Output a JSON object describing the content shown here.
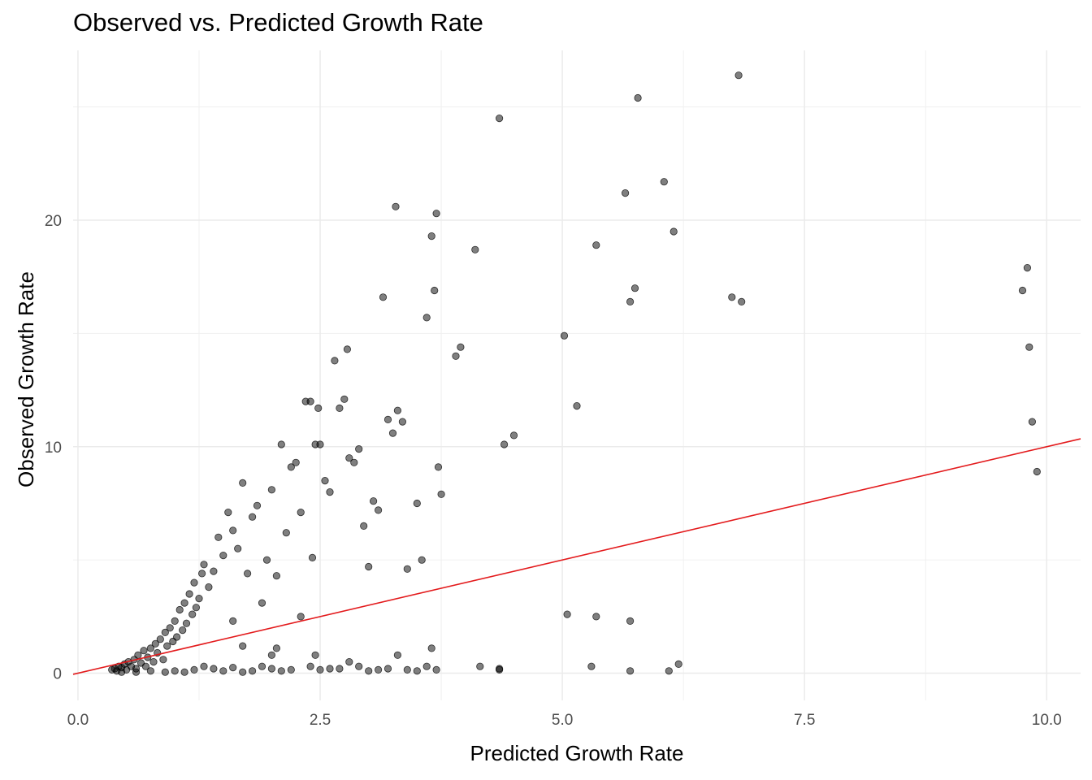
{
  "chart_data": {
    "type": "scatter",
    "title": "Observed vs. Predicted Growth Rate",
    "xlabel": "Predicted Growth Rate",
    "ylabel": "Observed Growth Rate",
    "xlim": [
      -0.05,
      10.35
    ],
    "ylim": [
      -1.2,
      27.5
    ],
    "xticks": [
      0.0,
      2.5,
      5.0,
      7.5,
      10.0
    ],
    "xtick_labels": [
      "0.0",
      "2.5",
      "5.0",
      "7.5",
      "10.0"
    ],
    "yticks": [
      0,
      10,
      20
    ],
    "ytick_labels": [
      "0",
      "10",
      "20"
    ],
    "grid": true,
    "point_color": "#000000",
    "point_opacity": 0.5,
    "reference_line": {
      "type": "identity",
      "slope": 1,
      "intercept": 0,
      "color": "#e31a1c"
    },
    "points": [
      [
        0.35,
        0.15
      ],
      [
        0.38,
        0.2
      ],
      [
        0.4,
        0.1
      ],
      [
        0.42,
        0.3
      ],
      [
        0.45,
        0.25
      ],
      [
        0.48,
        0.4
      ],
      [
        0.5,
        0.15
      ],
      [
        0.52,
        0.5
      ],
      [
        0.55,
        0.3
      ],
      [
        0.58,
        0.6
      ],
      [
        0.6,
        0.2
      ],
      [
        0.62,
        0.8
      ],
      [
        0.65,
        0.45
      ],
      [
        0.68,
        1.0
      ],
      [
        0.7,
        0.3
      ],
      [
        0.72,
        0.7
      ],
      [
        0.75,
        1.1
      ],
      [
        0.78,
        0.5
      ],
      [
        0.8,
        1.3
      ],
      [
        0.82,
        0.9
      ],
      [
        0.85,
        1.5
      ],
      [
        0.88,
        0.6
      ],
      [
        0.9,
        1.8
      ],
      [
        0.92,
        1.2
      ],
      [
        0.95,
        2.0
      ],
      [
        0.98,
        1.4
      ],
      [
        1.0,
        2.3
      ],
      [
        1.02,
        1.6
      ],
      [
        1.05,
        2.8
      ],
      [
        1.08,
        1.9
      ],
      [
        1.1,
        3.1
      ],
      [
        1.12,
        2.2
      ],
      [
        1.15,
        3.5
      ],
      [
        1.18,
        2.6
      ],
      [
        1.2,
        4.0
      ],
      [
        1.22,
        2.9
      ],
      [
        1.25,
        3.3
      ],
      [
        1.28,
        4.4
      ],
      [
        1.3,
        4.8
      ],
      [
        1.35,
        3.8
      ],
      [
        1.4,
        4.5
      ],
      [
        1.45,
        6.0
      ],
      [
        1.5,
        5.2
      ],
      [
        1.55,
        7.1
      ],
      [
        1.6,
        6.3
      ],
      [
        1.65,
        5.5
      ],
      [
        1.7,
        8.4
      ],
      [
        1.75,
        4.4
      ],
      [
        1.8,
        6.9
      ],
      [
        1.85,
        7.4
      ],
      [
        1.9,
        3.1
      ],
      [
        1.95,
        5.0
      ],
      [
        2.0,
        8.1
      ],
      [
        2.05,
        4.3
      ],
      [
        2.1,
        10.1
      ],
      [
        2.15,
        6.2
      ],
      [
        2.2,
        9.1
      ],
      [
        2.25,
        9.3
      ],
      [
        2.3,
        7.1
      ],
      [
        2.35,
        12.0
      ],
      [
        2.4,
        12.0
      ],
      [
        2.42,
        5.1
      ],
      [
        2.45,
        10.1
      ],
      [
        2.48,
        11.7
      ],
      [
        2.5,
        10.1
      ],
      [
        2.55,
        8.5
      ],
      [
        2.6,
        8.0
      ],
      [
        2.65,
        13.8
      ],
      [
        2.7,
        11.7
      ],
      [
        2.75,
        12.1
      ],
      [
        2.78,
        14.3
      ],
      [
        2.8,
        9.5
      ],
      [
        2.85,
        9.3
      ],
      [
        2.9,
        9.9
      ],
      [
        2.95,
        6.5
      ],
      [
        3.0,
        4.7
      ],
      [
        3.05,
        7.6
      ],
      [
        3.1,
        7.2
      ],
      [
        3.15,
        16.6
      ],
      [
        3.2,
        11.2
      ],
      [
        3.25,
        10.6
      ],
      [
        3.28,
        20.6
      ],
      [
        3.3,
        11.6
      ],
      [
        3.35,
        11.1
      ],
      [
        3.4,
        4.6
      ],
      [
        3.5,
        7.5
      ],
      [
        3.55,
        5.0
      ],
      [
        3.6,
        15.7
      ],
      [
        3.65,
        19.3
      ],
      [
        3.68,
        16.9
      ],
      [
        3.7,
        20.3
      ],
      [
        3.72,
        9.1
      ],
      [
        3.75,
        7.9
      ],
      [
        3.9,
        14.0
      ],
      [
        3.95,
        14.4
      ],
      [
        4.1,
        18.7
      ],
      [
        4.35,
        24.5
      ],
      [
        4.4,
        10.1
      ],
      [
        4.5,
        10.5
      ],
      [
        5.02,
        14.9
      ],
      [
        5.15,
        11.8
      ],
      [
        5.35,
        18.9
      ],
      [
        5.65,
        21.2
      ],
      [
        5.7,
        16.4
      ],
      [
        5.75,
        17.0
      ],
      [
        5.78,
        25.4
      ],
      [
        6.05,
        21.7
      ],
      [
        6.15,
        19.5
      ],
      [
        6.75,
        16.6
      ],
      [
        6.82,
        26.4
      ],
      [
        6.85,
        16.4
      ],
      [
        9.75,
        16.9
      ],
      [
        9.8,
        17.9
      ],
      [
        9.82,
        14.4
      ],
      [
        9.85,
        11.1
      ],
      [
        9.9,
        8.9
      ],
      [
        5.05,
        2.6
      ],
      [
        5.35,
        2.5
      ],
      [
        5.7,
        2.3
      ],
      [
        5.3,
        0.3
      ],
      [
        5.7,
        0.1
      ],
      [
        6.1,
        0.1
      ],
      [
        6.2,
        0.4
      ],
      [
        4.15,
        0.3
      ],
      [
        4.35,
        0.2
      ],
      [
        3.65,
        1.1
      ],
      [
        3.7,
        0.15
      ],
      [
        3.3,
        0.8
      ],
      [
        2.45,
        0.8
      ],
      [
        2.0,
        0.8
      ],
      [
        2.05,
        1.1
      ],
      [
        2.3,
        2.5
      ],
      [
        1.7,
        1.2
      ],
      [
        1.6,
        2.3
      ],
      [
        1.0,
        0.1
      ],
      [
        1.2,
        0.15
      ],
      [
        1.4,
        0.2
      ],
      [
        1.6,
        0.25
      ],
      [
        1.8,
        0.1
      ],
      [
        2.0,
        0.2
      ],
      [
        2.2,
        0.15
      ],
      [
        2.4,
        0.3
      ],
      [
        2.6,
        0.2
      ],
      [
        2.8,
        0.5
      ],
      [
        3.0,
        0.1
      ],
      [
        3.2,
        0.2
      ],
      [
        3.4,
        0.15
      ],
      [
        3.6,
        0.3
      ],
      [
        1.5,
        0.1
      ],
      [
        1.9,
        0.3
      ],
      [
        2.1,
        0.1
      ],
      [
        2.5,
        0.15
      ],
      [
        2.9,
        0.3
      ],
      [
        3.1,
        0.15
      ],
      [
        0.45,
        0.05
      ],
      [
        0.6,
        0.05
      ],
      [
        0.75,
        0.1
      ],
      [
        0.9,
        0.05
      ],
      [
        1.1,
        0.05
      ],
      [
        1.3,
        0.3
      ],
      [
        1.7,
        0.05
      ],
      [
        2.7,
        0.2
      ],
      [
        3.5,
        0.1
      ],
      [
        4.35,
        0.15
      ]
    ]
  }
}
